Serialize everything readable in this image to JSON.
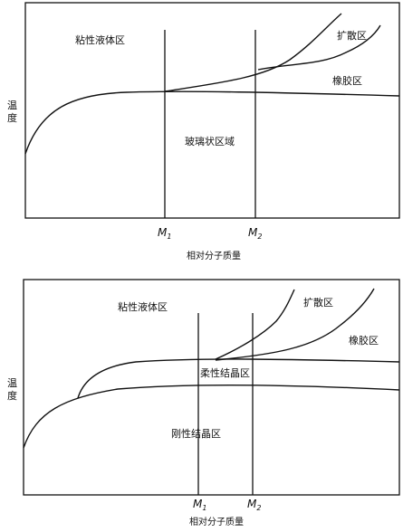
{
  "diagrams": [
    {
      "regions": {
        "viscous": "粘性液体区",
        "diffusion": "扩散区",
        "rubber": "橡胶区",
        "glass": "玻璃状区域"
      },
      "ylabel": [
        "温",
        "度"
      ],
      "xlabel": "相对分子质量",
      "m1": {
        "main": "M",
        "sub": "1"
      },
      "m2": {
        "main": "M",
        "sub": "2"
      }
    },
    {
      "regions": {
        "viscous": "粘性液体区",
        "diffusion": "扩散区",
        "rubber": "橡胶区",
        "flexible_crystal": "柔性结晶区",
        "rigid_crystal": "刚性结晶区"
      },
      "ylabel": [
        "温",
        "度"
      ],
      "xlabel": "相对分子质量",
      "m1": {
        "main": "M",
        "sub": "1"
      },
      "m2": {
        "main": "M",
        "sub": "2"
      }
    }
  ]
}
